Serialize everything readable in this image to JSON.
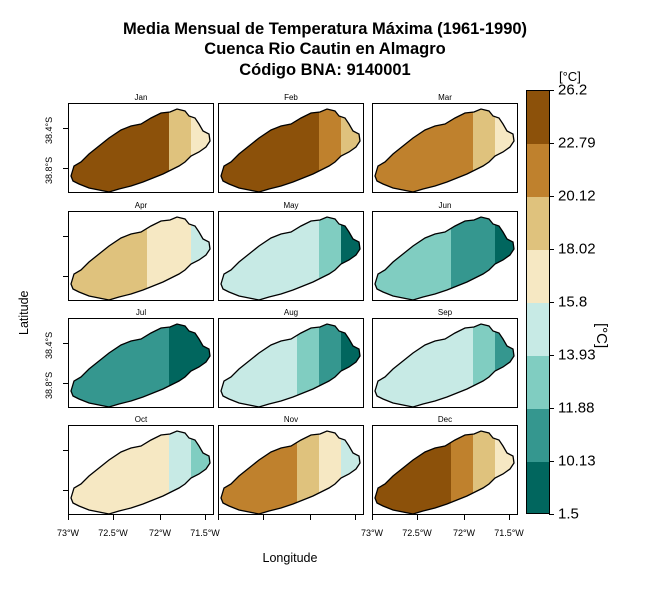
{
  "title": {
    "line1": "Media Mensual de Temperatura Máxima (1961-1990)",
    "line2": "Cuenca Rio Cautin en Almagro",
    "line3": "Código BNA: 9140001"
  },
  "axes": {
    "xlabel": "Longitude",
    "ylabel": "Latitude",
    "x_ticks": [
      "73°W",
      "72.5°W",
      "72°W",
      "71.5°W"
    ],
    "y_ticks": [
      "38.4°S",
      "38.8°S"
    ]
  },
  "legend": {
    "unit": "[°C]",
    "title": "[°C]",
    "breaks": [
      "26.2",
      "22.79",
      "20.12",
      "18.02",
      "15.8",
      "13.93",
      "11.88",
      "10.13",
      "1.5"
    ],
    "colors": [
      "#8c510a",
      "#bf812d",
      "#dfc27d",
      "#f6e8c3",
      "#c7eae5",
      "#80cdc1",
      "#35978f",
      "#01665e"
    ]
  },
  "chart_data": {
    "type": "heatmap",
    "title": "Media Mensual de Temperatura Máxima (1961-1990) — Cuenca Rio Cautin en Almagro — Código BNA: 9140001",
    "xlabel": "Longitude",
    "ylabel": "Latitude",
    "xlim": [
      -73.05,
      -71.45
    ],
    "ylim": [
      -39.0,
      -38.25
    ],
    "color_breaks": [
      26.2,
      22.79,
      20.12,
      18.02,
      15.8,
      13.93,
      11.88,
      10.13,
      1.5
    ],
    "months": [
      {
        "name": "Jan",
        "west": 0,
        "central": 0,
        "east": 2,
        "east_edge": 3
      },
      {
        "name": "Feb",
        "west": 0,
        "central": 0,
        "east": 1,
        "east_edge": 2
      },
      {
        "name": "Mar",
        "west": 1,
        "central": 1,
        "east": 2,
        "east_edge": 3
      },
      {
        "name": "Apr",
        "west": 2,
        "central": 3,
        "east": 3,
        "east_edge": 4
      },
      {
        "name": "May",
        "west": 4,
        "central": 4,
        "east": 5,
        "east_edge": 7
      },
      {
        "name": "Jun",
        "west": 5,
        "central": 6,
        "east": 6,
        "east_edge": 7
      },
      {
        "name": "Jul",
        "west": 6,
        "central": 6,
        "east": 7,
        "east_edge": 7
      },
      {
        "name": "Aug",
        "west": 4,
        "central": 5,
        "east": 6,
        "east_edge": 7
      },
      {
        "name": "Sep",
        "west": 4,
        "central": 4,
        "east": 5,
        "east_edge": 6
      },
      {
        "name": "Oct",
        "west": 3,
        "central": 3,
        "east": 4,
        "east_edge": 5
      },
      {
        "name": "Nov",
        "west": 1,
        "central": 2,
        "east": 3,
        "east_edge": 4
      },
      {
        "name": "Dec",
        "west": 0,
        "central": 1,
        "east": 2,
        "east_edge": 3
      }
    ]
  }
}
